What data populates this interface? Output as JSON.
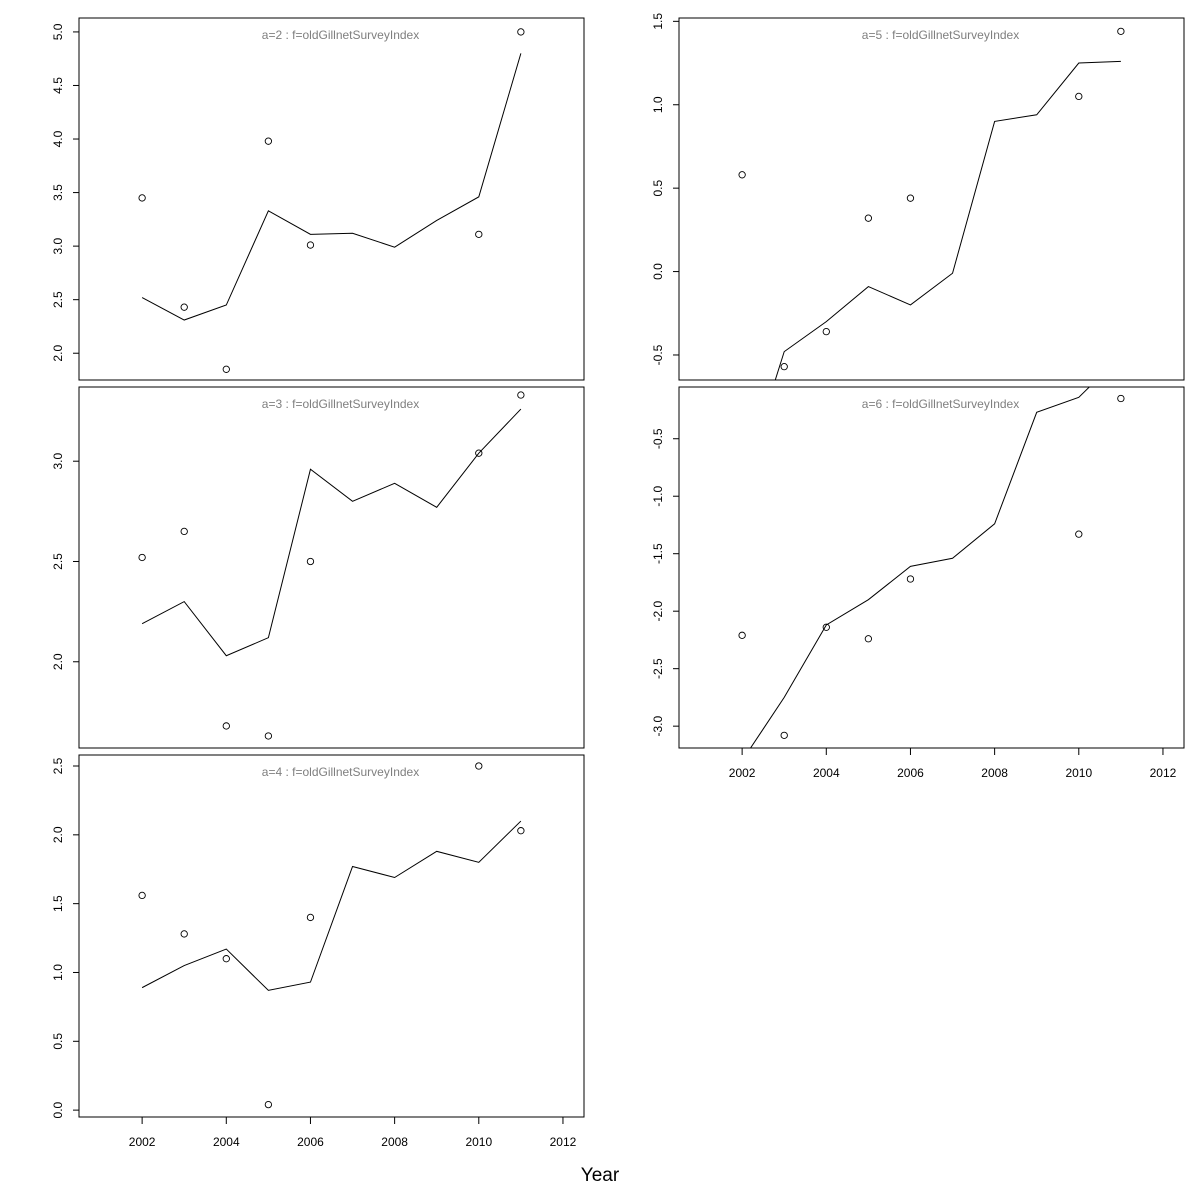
{
  "x_axis_label": "Year",
  "chart_data": [
    {
      "type": "line",
      "title": "a=2  :  f=oldGillnetSurveyIndex",
      "xlim": [
        2000.5,
        2012.5
      ],
      "ylim": [
        1.75,
        5.13
      ],
      "x_ticks": [],
      "y_ticks": [
        "2.0",
        "2.5",
        "3.0",
        "3.5",
        "4.0",
        "4.5",
        "5.0"
      ],
      "fitted": {
        "x": [
          2002,
          2003,
          2004,
          2005,
          2006,
          2007,
          2008,
          2009,
          2010,
          2011
        ],
        "y": [
          2.52,
          2.31,
          2.45,
          3.33,
          3.11,
          3.12,
          2.99,
          3.24,
          3.46,
          4.8
        ]
      },
      "observed": {
        "x": [
          2002,
          2003,
          2004,
          2005,
          2006,
          2010,
          2011
        ],
        "y": [
          3.45,
          2.43,
          1.85,
          3.98,
          3.01,
          3.11,
          5.0
        ]
      }
    },
    {
      "type": "line",
      "title": "a=3  :  f=oldGillnetSurveyIndex",
      "xlim": [
        2000.5,
        2012.5
      ],
      "ylim": [
        1.57,
        3.37
      ],
      "x_ticks": [],
      "y_ticks": [
        "2.0",
        "2.5",
        "3.0"
      ],
      "fitted": {
        "x": [
          2002,
          2003,
          2004,
          2005,
          2006,
          2007,
          2008,
          2009,
          2010,
          2011
        ],
        "y": [
          2.19,
          2.3,
          2.03,
          2.12,
          2.96,
          2.8,
          2.89,
          2.77,
          3.04,
          3.26
        ]
      },
      "observed": {
        "x": [
          2002,
          2003,
          2004,
          2005,
          2006,
          2010,
          2011
        ],
        "y": [
          2.52,
          2.65,
          1.68,
          1.63,
          2.5,
          3.04,
          3.33
        ]
      }
    },
    {
      "type": "line",
      "title": "a=4  :  f=oldGillnetSurveyIndex",
      "xlim": [
        2000.5,
        2012.5
      ],
      "ylim": [
        -0.05,
        2.58
      ],
      "x_ticks": [
        "2002",
        "2004",
        "2006",
        "2008",
        "2010",
        "2012"
      ],
      "y_ticks": [
        "0.0",
        "0.5",
        "1.0",
        "1.5",
        "2.0",
        "2.5"
      ],
      "fitted": {
        "x": [
          2002,
          2003,
          2004,
          2005,
          2006,
          2007,
          2008,
          2009,
          2010,
          2011
        ],
        "y": [
          0.89,
          1.05,
          1.17,
          0.87,
          0.93,
          1.77,
          1.69,
          1.88,
          1.8,
          2.1
        ]
      },
      "observed": {
        "x": [
          2002,
          2003,
          2004,
          2005,
          2006,
          2010,
          2011
        ],
        "y": [
          1.56,
          1.28,
          1.1,
          0.04,
          1.4,
          2.5,
          2.03
        ]
      }
    },
    {
      "type": "line",
      "title": "a=5  :  f=oldGillnetSurveyIndex",
      "xlim": [
        2000.5,
        2012.5
      ],
      "ylim": [
        -0.65,
        1.52
      ],
      "x_ticks": [],
      "y_ticks": [
        "-0.5",
        "0.0",
        "0.5",
        "1.0",
        "1.5"
      ],
      "fitted": {
        "x": [
          2002.6,
          2003,
          2004,
          2005,
          2006,
          2007,
          2008,
          2009,
          2010,
          2011
        ],
        "y": [
          -0.8,
          -0.48,
          -0.3,
          -0.09,
          -0.2,
          -0.01,
          0.9,
          0.94,
          1.25,
          1.26
        ]
      },
      "observed": {
        "x": [
          2002,
          2003,
          2004,
          2005,
          2006,
          2010,
          2011
        ],
        "y": [
          0.58,
          -0.57,
          -0.36,
          0.32,
          0.44,
          1.05,
          1.44
        ]
      }
    },
    {
      "type": "line",
      "title": "a=6  :  f=oldGillnetSurveyIndex",
      "xlim": [
        2000.5,
        2012.5
      ],
      "ylim": [
        -3.19,
        -0.05
      ],
      "x_ticks": [
        "2002",
        "2004",
        "2006",
        "2008",
        "2010",
        "2012"
      ],
      "y_ticks": [
        "-3.0",
        "-2.5",
        "-2.0",
        "-1.5",
        "-1.0",
        "-0.5"
      ],
      "fitted": {
        "x": [
          2002,
          2003,
          2004,
          2005,
          2006,
          2007,
          2008,
          2009,
          2010,
          2011
        ],
        "y": [
          -3.3,
          -2.75,
          -2.12,
          -1.9,
          -1.61,
          -1.54,
          -1.24,
          -0.27,
          -0.14,
          0.22
        ]
      },
      "observed": {
        "x": [
          2002,
          2003,
          2004,
          2005,
          2006,
          2010,
          2011
        ],
        "y": [
          -2.21,
          -3.08,
          -2.14,
          -2.24,
          -1.72,
          -1.33,
          -0.15
        ]
      }
    }
  ]
}
